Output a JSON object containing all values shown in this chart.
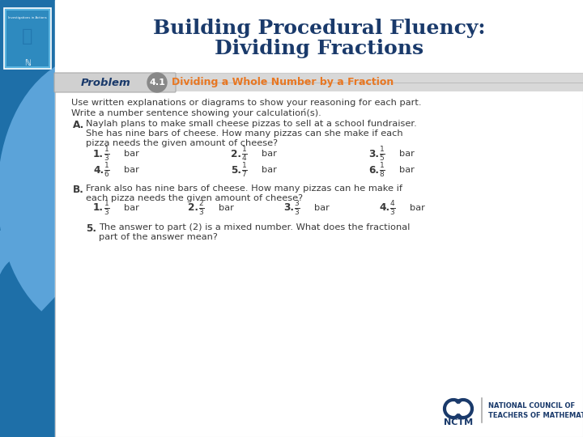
{
  "title_line1": "Building Procedural Fluency:",
  "title_line2": "Dividing Fractions",
  "title_color": "#1a3a6b",
  "title_fontsize": 18,
  "bg_color": "#ffffff",
  "left_bar_color": "#1e6fa8",
  "left_bar_light": "#5ba3d9",
  "problem_label": "Problem",
  "problem_number": "4.1",
  "problem_title": "Dividing a Whole Number by a Fraction",
  "intro_text1": "Use written explanations or diagrams to show your reasoning for each part.",
  "intro_text2": "Write a number sentence showing your calculatioń(s).",
  "part_A_label": "A.",
  "part_A_text1": "Naylah plans to make small cheese pizzas to sell at a school fundraiser.",
  "part_A_text2": "She has nine bars of cheese. How many pizzas can she make if each",
  "part_A_text3": "pizza needs the given amount of cheese?",
  "part_A_items": [
    {
      "num": "1.",
      "frac": "\\frac{1}{3}",
      "unit": "bar"
    },
    {
      "num": "2.",
      "frac": "\\frac{1}{4}",
      "unit": "bar"
    },
    {
      "num": "3.",
      "frac": "\\frac{1}{5}",
      "unit": "bar"
    },
    {
      "num": "4.",
      "frac": "\\frac{1}{6}",
      "unit": "bar"
    },
    {
      "num": "5.",
      "frac": "\\frac{1}{7}",
      "unit": "bar"
    },
    {
      "num": "6.",
      "frac": "\\frac{1}{8}",
      "unit": "bar"
    }
  ],
  "part_B_label": "B.",
  "part_B_text1": "Frank also has nine bars of cheese. How many pizzas can he make if",
  "part_B_text2": "each pizza needs the given amount of cheese?",
  "part_B_items": [
    {
      "num": "1.",
      "frac": "\\frac{1}{3}",
      "unit": "bar"
    },
    {
      "num": "2.",
      "frac": "\\frac{2}{3}",
      "unit": "bar"
    },
    {
      "num": "3.",
      "frac": "\\frac{3}{3}",
      "unit": "bar"
    },
    {
      "num": "4.",
      "frac": "\\frac{4}{3}",
      "unit": "bar"
    }
  ],
  "part_B5_text1": "The answer to part (2) is a mixed number. What does the fractional",
  "part_B5_text2": "part of the answer mean?",
  "nctm_text1": "NATIONAL COUNCIL OF",
  "nctm_text2": "TEACHERS OF MATHEMATICS",
  "text_color": "#3a3a3a",
  "problem_orange": "#e87722",
  "problem_gray_bg": "#d0d0d0",
  "problem_circle": "#888888"
}
